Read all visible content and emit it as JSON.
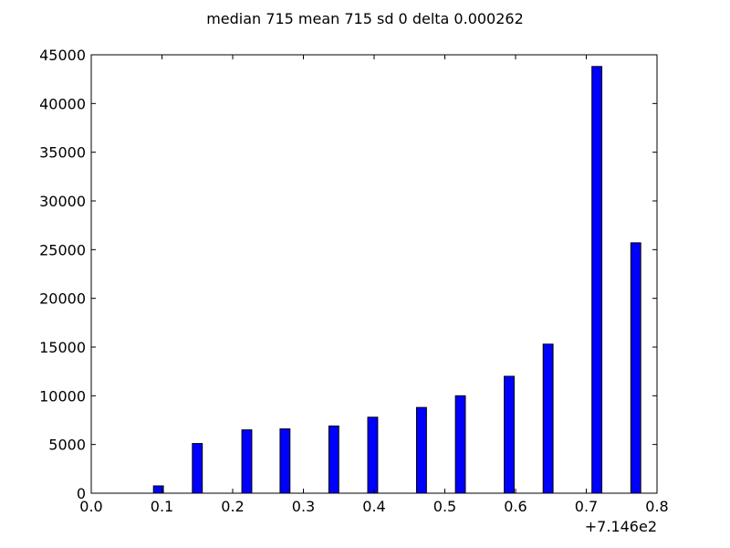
{
  "chart_data": {
    "type": "bar",
    "title": "median 715 mean 715 sd 0 delta 0.000262",
    "xlabel": "",
    "ylabel": "",
    "x_offset_label": "+7.146e2",
    "xlim": [
      0.0,
      0.8
    ],
    "ylim": [
      0,
      45000
    ],
    "x_ticks": [
      "0.0",
      "0.1",
      "0.2",
      "0.3",
      "0.4",
      "0.5",
      "0.6",
      "0.7",
      "0.8"
    ],
    "y_ticks": [
      "0",
      "5000",
      "10000",
      "15000",
      "20000",
      "25000",
      "30000",
      "35000",
      "40000",
      "45000"
    ],
    "grid": false,
    "legend": "none",
    "bar_color": "#0000ff",
    "bar_edge_color": "#000000",
    "bar_width": 0.014,
    "x": [
      0.095,
      0.15,
      0.22,
      0.274,
      0.343,
      0.398,
      0.467,
      0.522,
      0.591,
      0.646,
      0.715,
      0.77
    ],
    "values": [
      750,
      5100,
      6500,
      6600,
      6900,
      7800,
      8800,
      10000,
      12000,
      15300,
      43800,
      25700
    ]
  }
}
